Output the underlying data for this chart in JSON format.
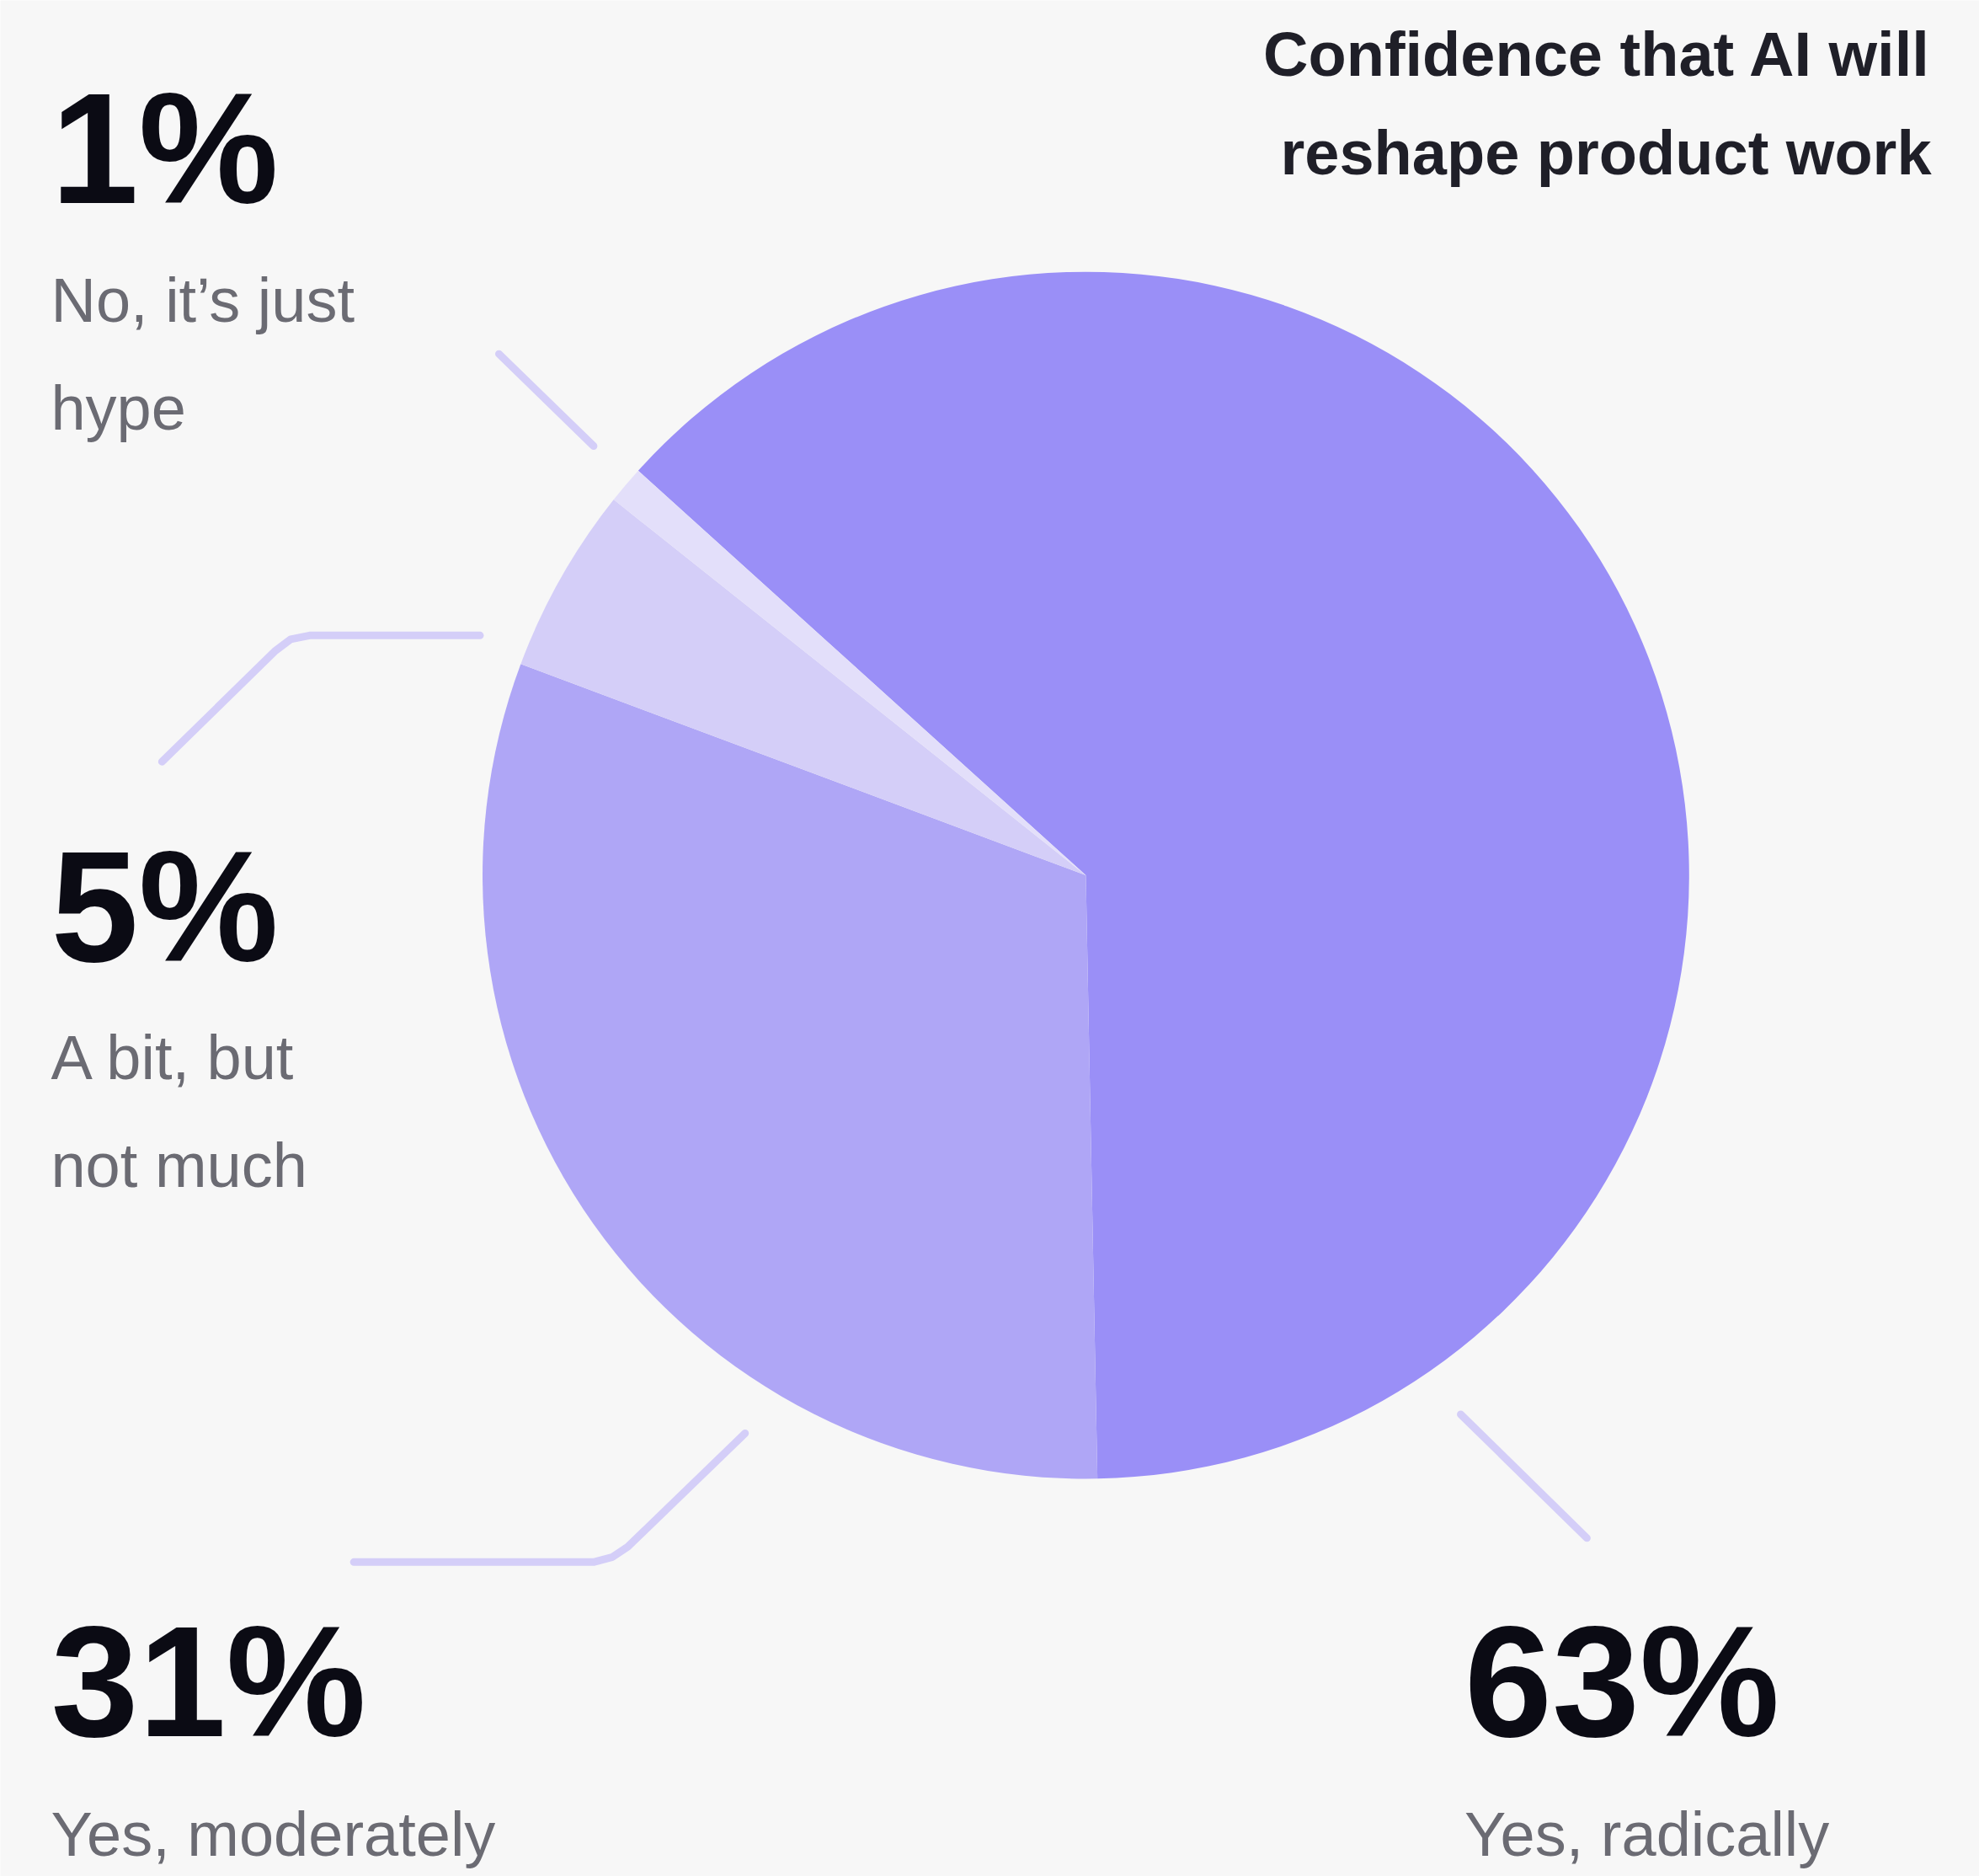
{
  "chart_data": {
    "type": "pie",
    "title": "Confidence that AI will reshape product work",
    "categories": [
      "Yes, radically",
      "Yes, moderately",
      "A bit, but not much",
      "No, it’s just hype"
    ],
    "values": [
      63,
      31,
      5,
      1
    ],
    "value_labels": [
      "63%",
      "31%",
      "5%",
      "1%"
    ],
    "colors": [
      "#9a8ff7",
      "#afa6f6",
      "#d4cef8",
      "#e3dffa"
    ]
  }
}
